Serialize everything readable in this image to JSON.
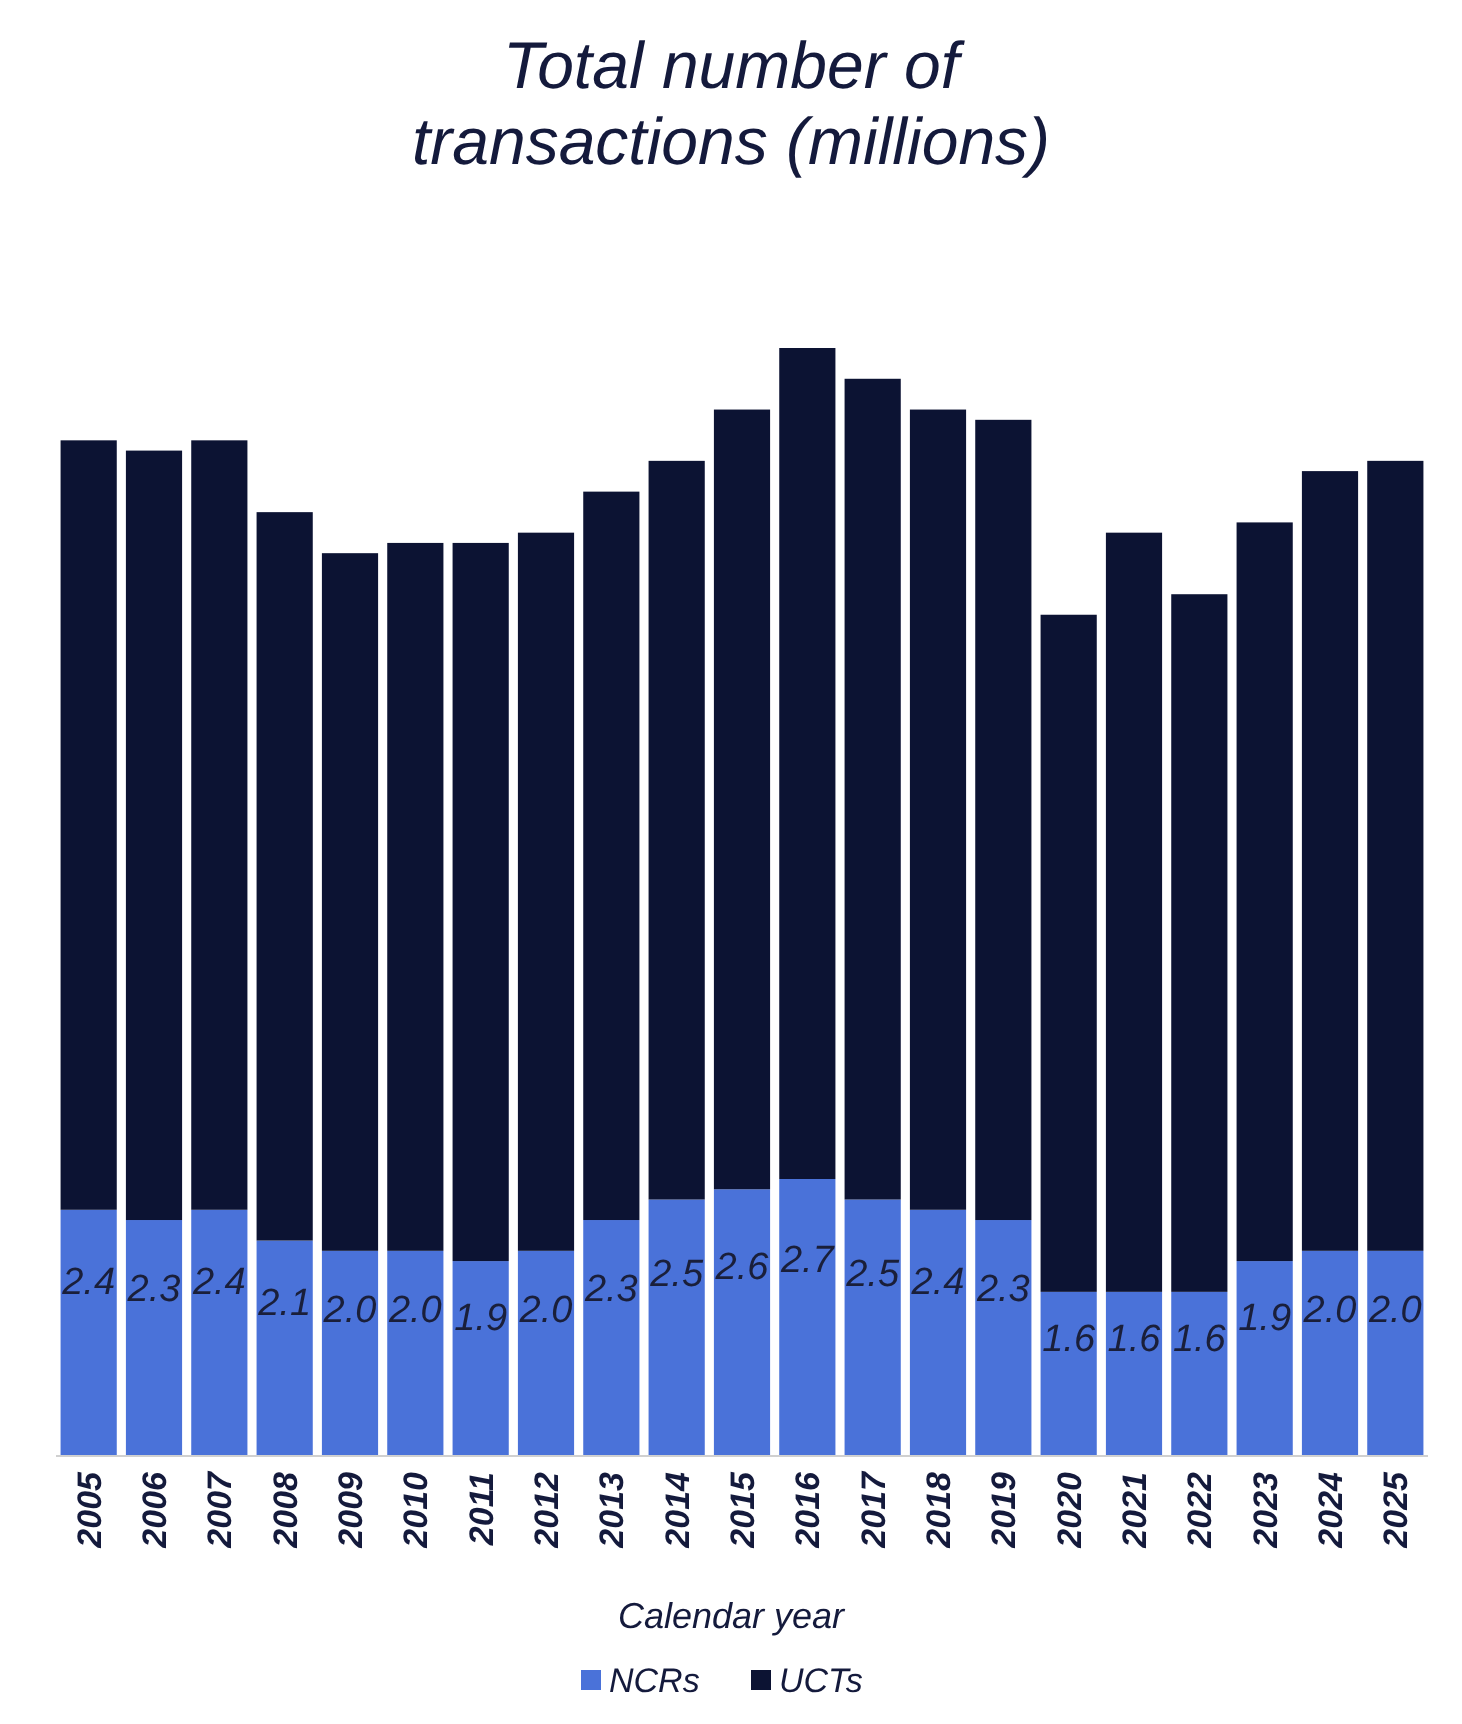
{
  "chart_data": {
    "type": "bar",
    "title": "Total number of\ntransactions (millions)",
    "xlabel": "Calendar year",
    "stacked": true,
    "legend": "bottom",
    "categories": [
      "2005",
      "2006",
      "2007",
      "2008",
      "2009",
      "2010",
      "2011",
      "2012",
      "2013",
      "2014",
      "2015",
      "2016",
      "2017",
      "2018",
      "2019",
      "2020",
      "2021",
      "2022",
      "2023",
      "2024",
      "2025"
    ],
    "series": [
      {
        "name": "NCRs",
        "color": "#4a72d9",
        "values": [
          2.4,
          2.3,
          2.4,
          2.1,
          2.0,
          2.0,
          1.9,
          2.0,
          2.3,
          2.5,
          2.6,
          2.7,
          2.5,
          2.4,
          2.3,
          1.6,
          1.6,
          1.6,
          1.9,
          2.0,
          2.0
        ],
        "value_labels": [
          "2.4",
          "2.3",
          "2.4",
          "2.1",
          "2.0",
          "2.0",
          "1.9",
          "2.0",
          "2.3",
          "2.5",
          "2.6",
          "2.7",
          "2.5",
          "2.4",
          "2.3",
          "1.6",
          "1.6",
          "1.6",
          "1.9",
          "2.0",
          "2.0"
        ]
      },
      {
        "name": "UCTs",
        "color": "#0c1333",
        "values": [
          7.5,
          7.5,
          7.5,
          7.1,
          6.8,
          6.9,
          7.0,
          7.0,
          7.1,
          7.2,
          7.6,
          8.1,
          8.0,
          7.8,
          7.8,
          6.6,
          7.4,
          6.8,
          7.2,
          7.6,
          7.7
        ]
      }
    ]
  }
}
